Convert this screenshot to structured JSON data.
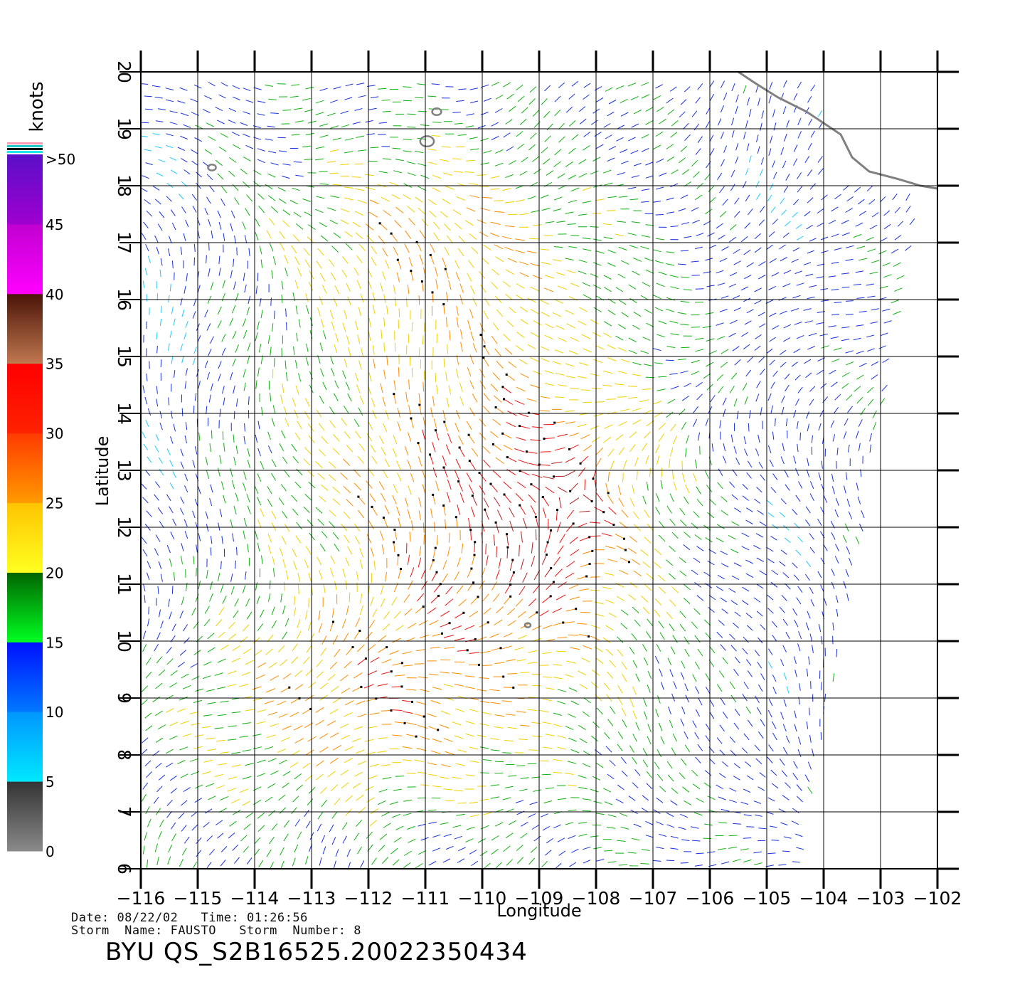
{
  "legend": {
    "title": "knots",
    "tick_labels": [
      "0",
      "5",
      "10",
      "15",
      "20",
      "25",
      "30",
      "35",
      "40",
      "45",
      ">50"
    ],
    "color_stops": [
      {
        "from": 0,
        "to": 5,
        "top": "#333333",
        "bottom": "#8a8a8a"
      },
      {
        "from": 5,
        "to": 10,
        "top": "#0096ff",
        "bottom": "#00e8ff"
      },
      {
        "from": 10,
        "to": 15,
        "top": "#0010ff",
        "bottom": "#0078ff"
      },
      {
        "from": 15,
        "to": 20,
        "top": "#006400",
        "bottom": "#00ff20"
      },
      {
        "from": 20,
        "to": 25,
        "top": "#ffc400",
        "bottom": "#ffff20"
      },
      {
        "from": 25,
        "to": 30,
        "top": "#ff3a00",
        "bottom": "#ff9a00"
      },
      {
        "from": 30,
        "to": 35,
        "top": "#ff0000",
        "bottom": "#ff2200"
      },
      {
        "from": 35,
        "to": 40,
        "top": "#4a1408",
        "bottom": "#c07850"
      },
      {
        "from": 40,
        "to": 45,
        "top": "#c000d0",
        "bottom": "#ff00ff"
      },
      {
        "from": 45,
        "to": 50,
        "top": "#5a10c8",
        "bottom": "#a000d0"
      }
    ]
  },
  "map": {
    "xlabel": "Longitude",
    "ylabel": "Latitude",
    "lon_range": [
      -116,
      -102
    ],
    "lat_range": [
      6,
      20
    ],
    "lon_ticks": [
      "−116",
      "−115",
      "−114",
      "−113",
      "−112",
      "−111",
      "−110",
      "−109",
      "−108",
      "−107",
      "−106",
      "−105",
      "−104",
      "−103",
      "−102"
    ],
    "lat_ticks": [
      "6",
      "7",
      "8",
      "9",
      "10",
      "11",
      "12",
      "13",
      "14",
      "15",
      "16",
      "17",
      "18",
      "19",
      "20"
    ],
    "grid": true,
    "coastline_color": "#808080",
    "coastline": [
      [
        -105.5,
        20
      ],
      [
        -105.2,
        19.8
      ],
      [
        -104.8,
        19.55
      ],
      [
        -104.3,
        19.3
      ],
      [
        -103.7,
        18.9
      ],
      [
        -103.5,
        18.5
      ],
      [
        -103.2,
        18.25
      ],
      [
        -102.7,
        18.12
      ],
      [
        -102.3,
        18.0
      ],
      [
        -102.0,
        17.95
      ]
    ],
    "islands": [
      {
        "lon": -110.8,
        "lat": 19.3,
        "r": 0.08
      },
      {
        "lon": -110.97,
        "lat": 18.78,
        "r": 0.12
      },
      {
        "lon": -114.75,
        "lat": 18.32,
        "r": 0.07
      },
      {
        "lon": -109.2,
        "lat": 10.28,
        "r": 0.05
      }
    ]
  },
  "chart_data": {
    "type": "wind vector field (scatterometer swath)",
    "quantity": "wind speed",
    "units": "knots",
    "swath": {
      "lat_bottom": 6.0,
      "lat_top": 20.0,
      "lon_left": -116.0,
      "lon_right_bottom": -104.5,
      "lon_right_top": -102.0
    },
    "speed_regions_knots": [
      {
        "label": "western edge",
        "approx_speed": 12
      },
      {
        "label": "north-central",
        "approx_speed": 24
      },
      {
        "label": "core near 109W 12N",
        "approx_speed": 38
      },
      {
        "label": "southwest 8-10N",
        "approx_speed": 31
      },
      {
        "label": "eastern swath edge",
        "approx_speed": 10
      }
    ]
  },
  "info": {
    "date_label": "Date:",
    "date": "08/22/02",
    "time_label": "Time:",
    "time": "01:26:56",
    "storm_name_label": "Storm  Name:",
    "storm_name": "FAUSTO",
    "storm_number_label": "Storm  Number:",
    "storm_number": "8",
    "filename": "BYU  QS_S2B16525.20022350434"
  }
}
